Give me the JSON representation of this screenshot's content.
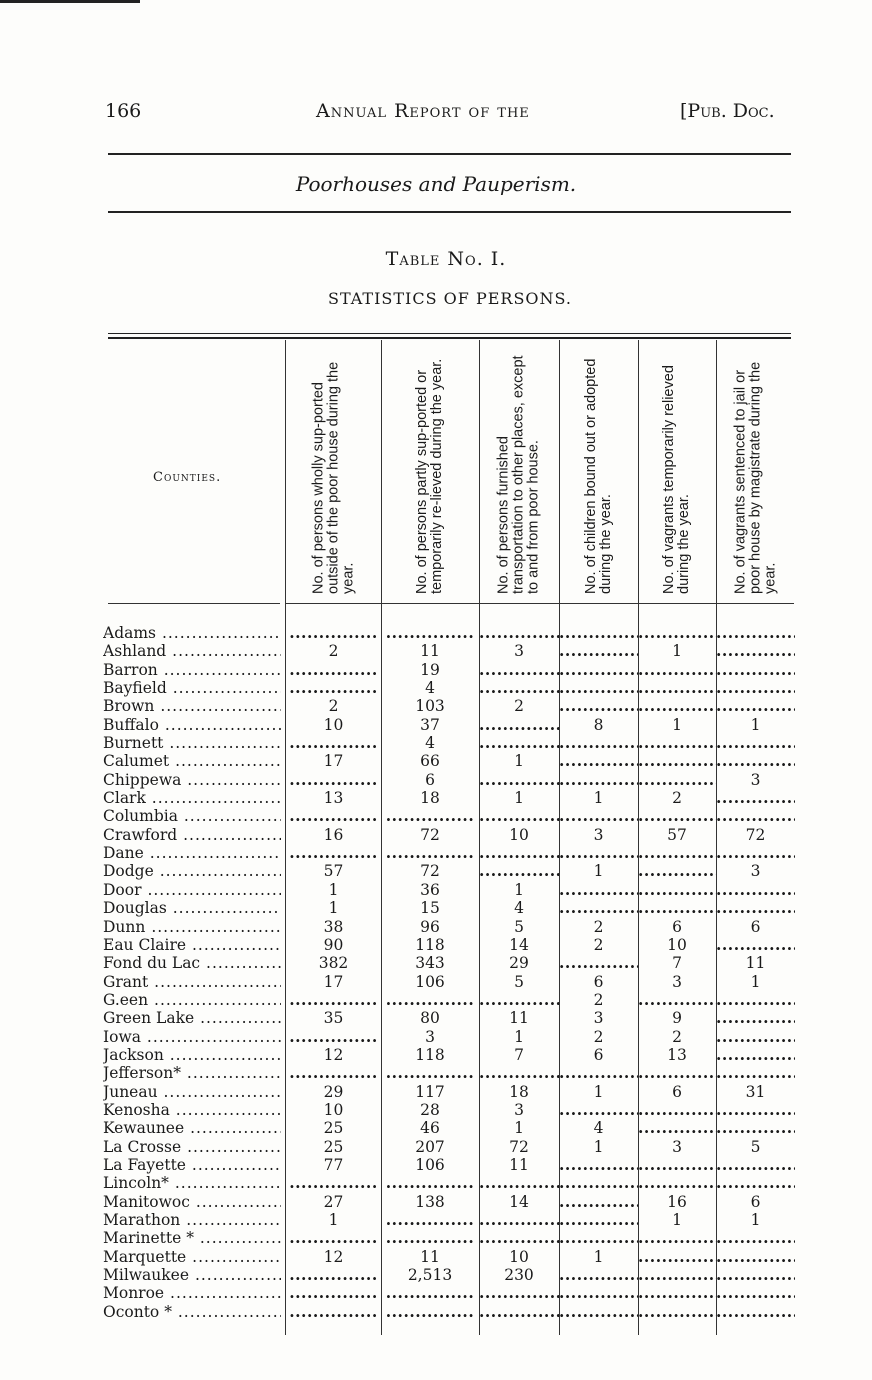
{
  "header": {
    "page_number": "166",
    "running_title": "Annual Report of the",
    "doc_ref": "[Pub. Doc."
  },
  "section_title": "Poorhouses and Pauperism.",
  "table": {
    "name": "Table No. I.",
    "subtitle": "STATISTICS OF PERSONS.",
    "columns": [
      "Counties.",
      "No. of persons wholly sup-ported outside of the poor house during the year.",
      "No. of persons partly sup-ported or temporarily re-lieved during the year.",
      "No. of persons furnished transportation to other places, except to and from poor house.",
      "No. of children bound out or adopted during the year.",
      "No. of vagrants temporarily relieved during the year.",
      "No. of vagrants sentenced to jail or poor house by magistrate during the year."
    ],
    "rows": [
      [
        "Adams",
        "",
        "",
        "",
        "",
        "",
        ""
      ],
      [
        "Ashland",
        "2",
        "11",
        "3",
        "",
        "1",
        ""
      ],
      [
        "Barron",
        "",
        "19",
        "",
        "",
        "",
        ""
      ],
      [
        "Bayfield",
        "",
        "4",
        "",
        "",
        "",
        ""
      ],
      [
        "Brown",
        "2",
        "103",
        "2",
        "",
        "",
        ""
      ],
      [
        "Buffalo",
        "10",
        "37",
        "",
        "8",
        "1",
        "1"
      ],
      [
        "Burnett",
        "",
        "4",
        "",
        "",
        "",
        ""
      ],
      [
        "Calumet",
        "17",
        "66",
        "1",
        "",
        "",
        ""
      ],
      [
        "Chippewa",
        "",
        "6",
        "",
        "",
        "",
        "3"
      ],
      [
        "Clark",
        "13",
        "18",
        "1",
        "1",
        "2",
        ""
      ],
      [
        "Columbia",
        "",
        "",
        "",
        "",
        "",
        ""
      ],
      [
        "Crawford",
        "16",
        "72",
        "10",
        "3",
        "57",
        "72"
      ],
      [
        "Dane",
        "",
        "",
        "",
        "",
        "",
        ""
      ],
      [
        "Dodge",
        "57",
        "72",
        "",
        "1",
        "",
        "3"
      ],
      [
        "Door",
        "1",
        "36",
        "1",
        "",
        "",
        ""
      ],
      [
        "Douglas",
        "1",
        "15",
        "4",
        "",
        "",
        ""
      ],
      [
        "Dunn",
        "38",
        "96",
        "5",
        "2",
        "6",
        "6"
      ],
      [
        "Eau Claire",
        "90",
        "118",
        "14",
        "2",
        "10",
        ""
      ],
      [
        "Fond du Lac",
        "382",
        "343",
        "29",
        "",
        "7",
        "11"
      ],
      [
        "Grant",
        "17",
        "106",
        "5",
        "6",
        "3",
        "1"
      ],
      [
        "G.een",
        "",
        "",
        "",
        "2",
        "",
        ""
      ],
      [
        "Green Lake",
        "35",
        "80",
        "11",
        "3",
        "9",
        ""
      ],
      [
        "Iowa",
        "",
        "3",
        "1",
        "2",
        "2",
        ""
      ],
      [
        "Jackson",
        "12",
        "118",
        "7",
        "6",
        "13",
        ""
      ],
      [
        "Jefferson*",
        "",
        "",
        "",
        "",
        "",
        ""
      ],
      [
        "Juneau",
        "29",
        "117",
        "18",
        "1",
        "6",
        "31"
      ],
      [
        "Kenosha",
        "10",
        "28",
        "3",
        "",
        "",
        ""
      ],
      [
        "Kewaunee",
        "25",
        "46",
        "1",
        "4",
        "",
        ""
      ],
      [
        "La Crosse",
        "25",
        "207",
        "72",
        "1",
        "3",
        "5"
      ],
      [
        "La Fayette",
        "77",
        "106",
        "11",
        "",
        "",
        ""
      ],
      [
        "Lincoln*",
        "",
        "",
        "",
        "",
        "",
        ""
      ],
      [
        "Manitowoc",
        "27",
        "138",
        "14",
        "",
        "16",
        "6"
      ],
      [
        "Marathon",
        "1",
        "",
        "",
        "",
        "1",
        "1"
      ],
      [
        "Marinette *",
        "",
        "",
        "",
        "",
        "",
        ""
      ],
      [
        "Marquette",
        "12",
        "11",
        "10",
        "1",
        "",
        ""
      ],
      [
        "Milwaukee",
        "",
        "2,513",
        "230",
        "",
        "",
        ""
      ],
      [
        "Monroe",
        "",
        "",
        "",
        "",
        "",
        ""
      ],
      [
        "Oconto *",
        "",
        "",
        "",
        "",
        "",
        ""
      ]
    ]
  }
}
